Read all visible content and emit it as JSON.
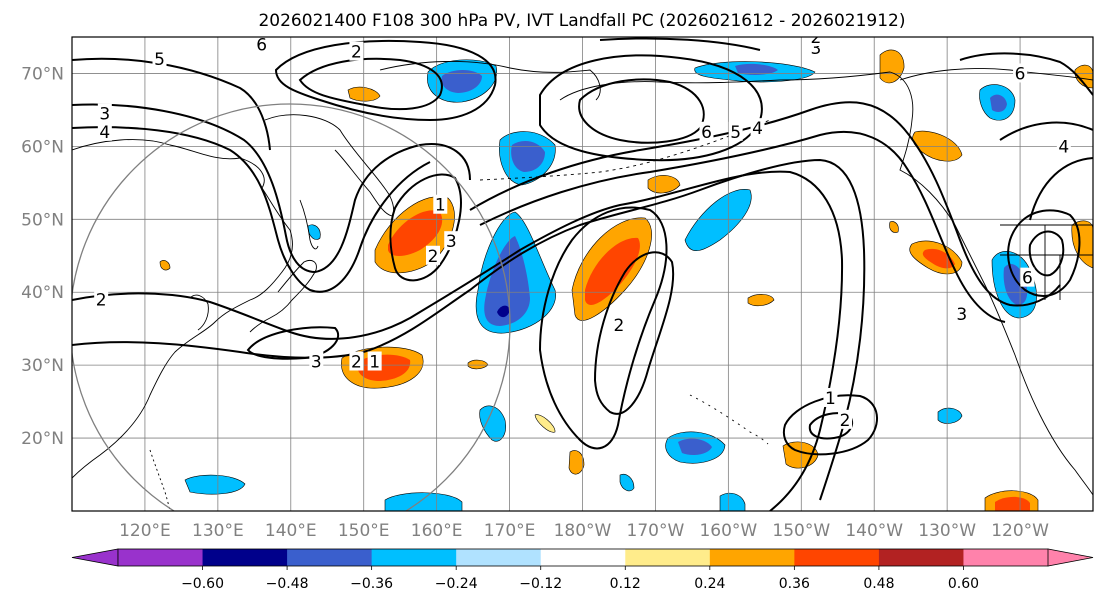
{
  "title": "2026021400 F108 300 hPa PV, IVT Landfall PC (2026021612 - 2026021912)",
  "chart_data": {
    "type": "heatmap",
    "title": "2026021400 F108 300 hPa PV, IVT Landfall PC (2026021612 - 2026021912)",
    "variable_contours": "300 hPa PV",
    "variable_fill": "IVT Landfall PC",
    "lon_range": [
      110,
      250
    ],
    "lat_range": [
      10,
      75
    ],
    "lon_ticks": [
      120,
      130,
      140,
      150,
      160,
      170,
      180,
      190,
      200,
      210,
      220,
      230,
      240
    ],
    "lon_tick_labels": [
      "120°E",
      "130°E",
      "140°E",
      "150°E",
      "160°E",
      "170°E",
      "180°W",
      "170°W",
      "160°W",
      "150°W",
      "140°W",
      "130°W",
      "120°W"
    ],
    "lat_ticks": [
      20,
      30,
      40,
      50,
      60,
      70
    ],
    "lat_tick_labels": [
      "20°N",
      "30°N",
      "40°N",
      "50°N",
      "60°N",
      "70°N"
    ],
    "colorbar": {
      "levels": [
        -0.72,
        -0.6,
        -0.48,
        -0.36,
        -0.24,
        -0.12,
        0.12,
        0.24,
        0.36,
        0.48,
        0.6,
        0.72
      ],
      "tick_labels": [
        "−0.60",
        "−0.48",
        "−0.36",
        "−0.24",
        "−0.12",
        "0.12",
        "0.24",
        "0.36",
        "0.48",
        "0.60"
      ],
      "colors": [
        "#9932cc",
        "#00008b",
        "#3a5fcd",
        "#00bfff",
        "#b0e2ff",
        "#ffffff",
        "#ffec8b",
        "#ffa500",
        "#ff4500",
        "#b22222",
        "#ff82ab"
      ],
      "extend": "both"
    },
    "contour_labels": [
      {
        "text": "5",
        "lon": 122.0,
        "lat": 72.0
      },
      {
        "text": "6",
        "lon": 136.0,
        "lat": 74.0
      },
      {
        "text": "3",
        "lon": 114.5,
        "lat": 64.5
      },
      {
        "text": "4",
        "lon": 114.5,
        "lat": 62.0
      },
      {
        "text": "2",
        "lon": 149.0,
        "lat": 73.0
      },
      {
        "text": "2",
        "lon": 114.0,
        "lat": 39.0
      },
      {
        "text": "1",
        "lon": 160.5,
        "lat": 52.0
      },
      {
        "text": "3",
        "lon": 162.0,
        "lat": 47.0
      },
      {
        "text": "2",
        "lon": 159.5,
        "lat": 45.0
      },
      {
        "text": "3",
        "lon": 143.5,
        "lat": 30.5
      },
      {
        "text": "2",
        "lon": 149.0,
        "lat": 30.5
      },
      {
        "text": "1",
        "lon": 151.5,
        "lat": 30.5
      },
      {
        "text": "2",
        "lon": 185.0,
        "lat": 35.5
      },
      {
        "text": "6",
        "lon": 197.0,
        "lat": 62.0
      },
      {
        "text": "5",
        "lon": 201.0,
        "lat": 62.0
      },
      {
        "text": "4",
        "lon": 204.0,
        "lat": 62.5
      },
      {
        "text": "3",
        "lon": 212.0,
        "lat": 73.5
      },
      {
        "text": "2",
        "lon": 212.0,
        "lat": 75.0
      },
      {
        "text": "1",
        "lon": 214.0,
        "lat": 25.5
      },
      {
        "text": "2",
        "lon": 216.0,
        "lat": 22.5
      },
      {
        "text": "3",
        "lon": 232.0,
        "lat": 37.0
      },
      {
        "text": "6",
        "lon": 240.0,
        "lat": 70.0
      },
      {
        "text": "4",
        "lon": 246.0,
        "lat": 60.0
      },
      {
        "text": "6",
        "lon": 241.0,
        "lat": 42.0
      }
    ],
    "circle": {
      "center_lon": 140,
      "center_lat": 30,
      "radius_deg": 20
    }
  }
}
